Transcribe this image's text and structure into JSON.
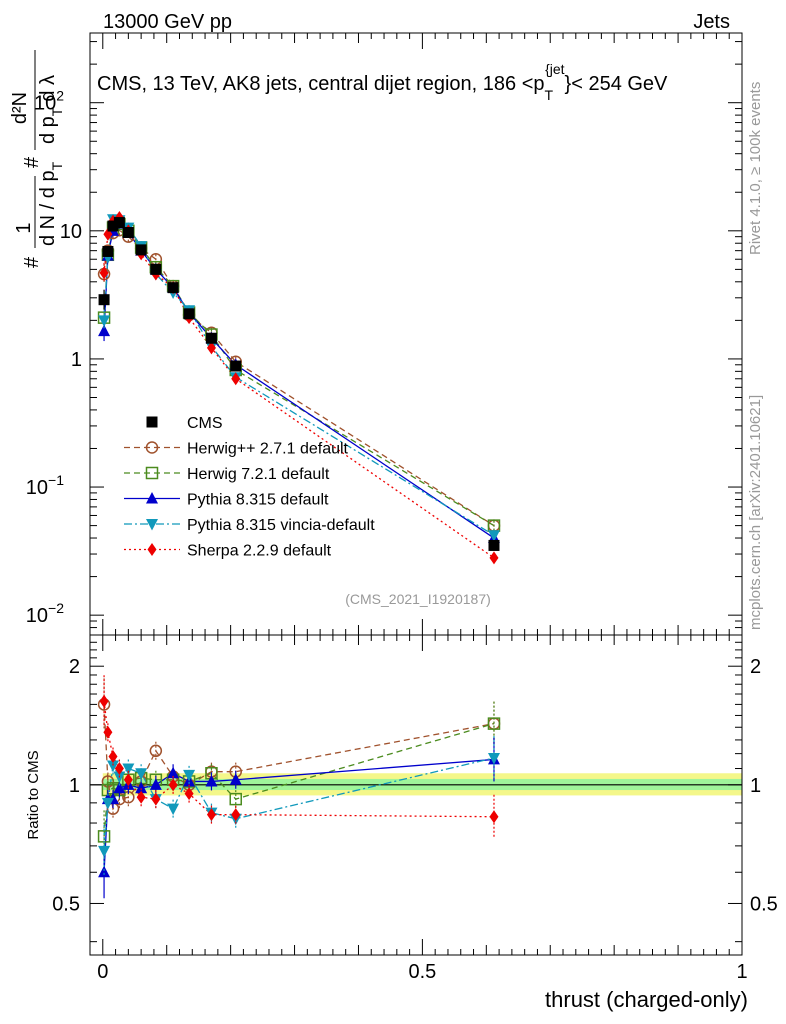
{
  "header": {
    "beam": "13000 GeV pp",
    "category": "Jets",
    "rivet": "Rivet 4.1.0, ≥ 100k events",
    "mcplots": "mcplots.cern.ch [arXiv:2401.10621]",
    "analysis": "(CMS_2021_I1920187)"
  },
  "chart_data": [
    {
      "type": "scatter",
      "title": "CMS, 13 TeV, AK8 jets, central dijet region, 186 <p_T^{jet}< 254 GeV",
      "title_parts": {
        "main": "CMS, 13 TeV, AK8 jets, central dijet region, 186 <p",
        "sub": "T",
        "sup": "{jet",
        "tail": "}< 254 GeV"
      },
      "ylabel": "1/(dN/dp_T) d²N/(dp_T dλ)",
      "ylabel_parts": {
        "hash1": "#",
        "one": "1",
        "den": "d N / d p",
        "den_sub": "T",
        "hash2": "#",
        "num_top": "d²N",
        "num_bot": "d p",
        "num_bot_sub": "T",
        "num_bot_tail": "d λ"
      },
      "yscale": "log",
      "ylim": [
        0.007,
        350
      ],
      "xlim": [
        -0.02,
        1.0
      ],
      "yticks": [
        {
          "v": 0.01,
          "base": "10",
          "exp": "−2"
        },
        {
          "v": 0.1,
          "base": "10",
          "exp": "−1"
        },
        {
          "v": 1,
          "base": "1",
          "exp": ""
        },
        {
          "v": 10,
          "base": "10",
          "exp": ""
        },
        {
          "v": 100,
          "base": "10",
          "exp": "2"
        }
      ],
      "legend": [
        {
          "label": "CMS",
          "color": "#000000",
          "marker": "square",
          "dash": ""
        },
        {
          "label": "Herwig++ 2.7.1 default",
          "color": "#a0522d",
          "marker": "circle-open",
          "dash": "6,4"
        },
        {
          "label": "Herwig 7.2.1 default",
          "color": "#4b8b1e",
          "marker": "square-open",
          "dash": "6,4"
        },
        {
          "label": "Pythia 8.315 default",
          "color": "#0000cc",
          "marker": "triangle-up",
          "dash": ""
        },
        {
          "label": "Pythia 8.315 vincia-default",
          "color": "#1199bb",
          "marker": "triangle-down",
          "dash": "8,3,2,3"
        },
        {
          "label": "Sherpa 2.2.9 default",
          "color": "#ee0000",
          "marker": "diamond",
          "dash": "2,3"
        }
      ],
      "x": [
        0.002,
        0.008,
        0.016,
        0.026,
        0.04,
        0.06,
        0.083,
        0.11,
        0.135,
        0.17,
        0.208,
        0.612
      ],
      "series": [
        {
          "name": "CMS",
          "values": [
            2.9,
            6.9,
            10.9,
            11.6,
            9.7,
            7.1,
            5.0,
            3.6,
            2.25,
            1.45,
            0.88,
            0.035
          ]
        },
        {
          "name": "Herwig++ 2.7.1 default",
          "values": [
            4.6,
            7.0,
            9.6,
            10.1,
            9.0,
            7.3,
            6.0,
            3.7,
            2.2,
            1.6,
            0.95,
            0.05
          ]
        },
        {
          "name": "Herwig 7.2.1 default",
          "values": [
            2.1,
            6.5,
            10.6,
            11.3,
            10.0,
            7.4,
            5.2,
            3.7,
            2.3,
            1.55,
            0.82,
            0.05
          ]
        },
        {
          "name": "Pythia 8.315 default",
          "values": [
            1.65,
            6.4,
            10.0,
            11.4,
            9.7,
            7.0,
            5.0,
            3.6,
            2.3,
            1.45,
            0.9,
            0.04
          ]
        },
        {
          "name": "Pythia 8.315 vincia-default",
          "values": [
            2.0,
            6.2,
            12.3,
            12.1,
            10.6,
            7.6,
            4.6,
            3.3,
            2.4,
            1.25,
            0.72,
            0.042
          ]
        },
        {
          "name": "Sherpa 2.2.9 default",
          "values": [
            4.7,
            9.4,
            11.9,
            12.7,
            10.0,
            6.6,
            4.6,
            3.6,
            2.1,
            1.22,
            0.7,
            0.028
          ]
        }
      ]
    },
    {
      "type": "scatter",
      "title": "",
      "ylabel": "Ratio to CMS",
      "xlabel": "thrust (charged-only)",
      "ylim": [
        0.37,
        2.4
      ],
      "yscale": "log",
      "xlim": [
        -0.02,
        1.0
      ],
      "yticks": [
        0.5,
        1,
        2
      ],
      "ytick_labels": [
        "0.5",
        "1",
        "2"
      ],
      "xticks": [
        0,
        0.5,
        1
      ],
      "xtick_labels": [
        "0",
        "0.5",
        "1"
      ],
      "band_outer": [
        0.94,
        1.07
      ],
      "band_inner": [
        0.97,
        1.035
      ],
      "x": [
        0.002,
        0.008,
        0.016,
        0.026,
        0.04,
        0.06,
        0.083,
        0.11,
        0.135,
        0.17,
        0.208,
        0.612
      ],
      "series": [
        {
          "name": "Herwig++ 2.7.1 default",
          "values": [
            1.6,
            1.02,
            0.87,
            0.92,
            0.93,
            1.02,
            1.22,
            1.05,
            1.0,
            1.08,
            1.08,
            1.43
          ]
        },
        {
          "name": "Herwig 7.2.1 default",
          "values": [
            0.74,
            0.97,
            0.98,
            0.97,
            1.03,
            1.04,
            1.03,
            1.03,
            1.02,
            1.07,
            0.92,
            1.43
          ]
        },
        {
          "name": "Pythia 8.315 default",
          "values": [
            0.6,
            0.92,
            0.92,
            0.98,
            1.0,
            0.98,
            1.0,
            1.07,
            1.02,
            1.02,
            1.03,
            1.16
          ]
        },
        {
          "name": "Pythia 8.315 vincia-default",
          "values": [
            0.68,
            0.9,
            1.12,
            1.05,
            1.1,
            1.07,
            0.92,
            0.87,
            1.06,
            0.85,
            0.82,
            1.17
          ]
        },
        {
          "name": "Sherpa 2.2.9 default",
          "values": [
            1.63,
            1.36,
            1.18,
            1.1,
            1.03,
            0.93,
            0.92,
            1.0,
            0.95,
            0.84,
            0.84,
            0.83
          ]
        }
      ]
    }
  ]
}
